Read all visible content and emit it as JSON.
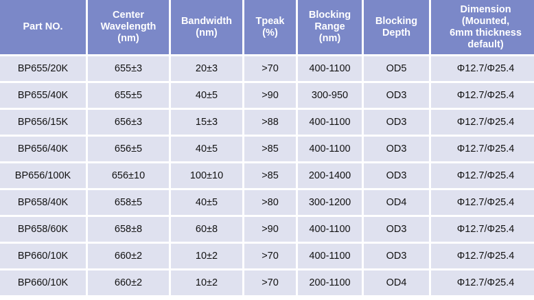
{
  "colors": {
    "header_bg": "#7b88c8",
    "row_bg": "#dfe1ef"
  },
  "headers": [
    "Part NO.",
    "Center Wavelength (nm)",
    "Bandwidth (nm)",
    "Tpeak (%)",
    "Blocking Range (nm)",
    "Blocking Depth",
    "Dimension (Mounted, 6mm thickness default)"
  ],
  "rows": [
    [
      "BP655/20K",
      "655±3",
      "20±3",
      ">70",
      "400-1100",
      "OD5",
      "Φ12.7/Φ25.4"
    ],
    [
      "BP655/40K",
      "655±5",
      "40±5",
      ">90",
      "300-950",
      "OD3",
      "Φ12.7/Φ25.4"
    ],
    [
      "BP656/15K",
      "656±3",
      "15±3",
      ">88",
      "400-1100",
      "OD3",
      "Φ12.7/Φ25.4"
    ],
    [
      "BP656/40K",
      "656±5",
      "40±5",
      ">85",
      "400-1100",
      "OD3",
      "Φ12.7/Φ25.4"
    ],
    [
      "BP656/100K",
      "656±10",
      "100±10",
      ">85",
      "200-1400",
      "OD3",
      "Φ12.7/Φ25.4"
    ],
    [
      "BP658/40K",
      "658±5",
      "40±5",
      ">80",
      "300-1200",
      "OD4",
      "Φ12.7/Φ25.4"
    ],
    [
      "BP658/60K",
      "658±8",
      "60±8",
      ">90",
      "400-1100",
      "OD3",
      "Φ12.7/Φ25.4"
    ],
    [
      "BP660/10K",
      "660±2",
      "10±2",
      ">70",
      "400-1100",
      "OD3",
      "Φ12.7/Φ25.4"
    ],
    [
      "BP660/10K",
      "660±2",
      "10±2",
      ">70",
      "200-1100",
      "OD4",
      "Φ12.7/Φ25.4"
    ]
  ]
}
